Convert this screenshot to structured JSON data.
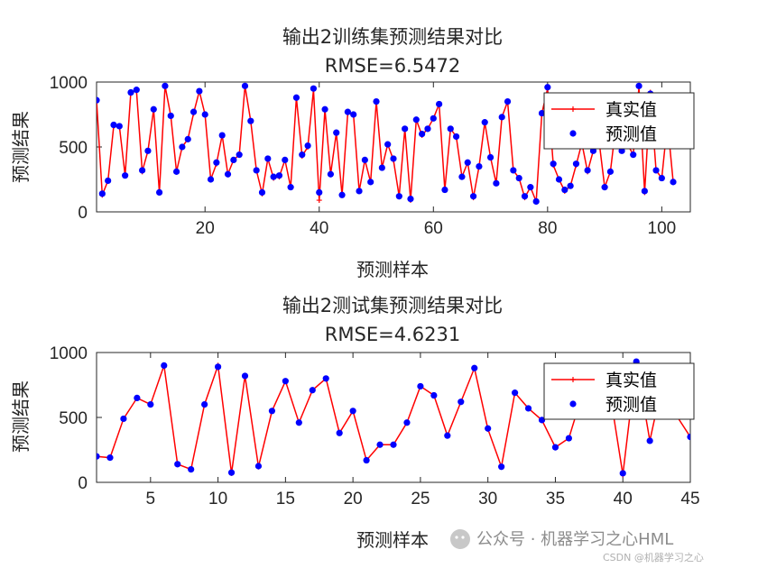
{
  "chart_data": [
    {
      "type": "line",
      "title": "输出2训练集预测结果对比",
      "subtitle": "RMSE=6.5472",
      "xlabel": "预测样本",
      "ylabel": "预测结果",
      "xlim": [
        1,
        105
      ],
      "ylim": [
        0,
        1000
      ],
      "xticks": [
        20,
        40,
        60,
        80,
        100
      ],
      "yticks": [
        0,
        500,
        1000
      ],
      "legend_position": "top-right",
      "series": [
        {
          "name": "真实值",
          "color": "#ff0000",
          "style": "line-plus",
          "values": [
            860,
            130,
            240,
            660,
            660,
            280,
            920,
            930,
            310,
            470,
            790,
            150,
            970,
            740,
            310,
            500,
            560,
            760,
            930,
            750,
            250,
            370,
            590,
            290,
            400,
            440,
            970,
            700,
            320,
            140,
            410,
            260,
            270,
            400,
            190,
            880,
            430,
            500,
            940,
            90,
            790,
            290,
            610,
            130,
            760,
            750,
            160,
            400,
            230,
            850,
            340,
            520,
            400,
            120,
            640,
            90,
            710,
            590,
            640,
            720,
            830,
            170,
            640,
            580,
            270,
            380,
            110,
            350,
            690,
            420,
            220,
            730,
            850,
            320,
            260,
            110,
            190,
            80,
            760,
            950,
            360,
            250,
            160,
            200,
            360,
            530,
            310,
            470,
            550,
            190,
            310,
            680,
            470,
            520,
            440,
            960,
            150,
            920,
            320,
            260,
            690,
            230
          ]
        },
        {
          "name": "预测值",
          "color": "#0000ff",
          "style": "dots",
          "values": [
            860,
            140,
            240,
            670,
            660,
            280,
            920,
            940,
            320,
            470,
            790,
            150,
            970,
            740,
            310,
            500,
            560,
            770,
            930,
            750,
            250,
            380,
            590,
            290,
            400,
            440,
            970,
            700,
            320,
            150,
            410,
            270,
            280,
            400,
            190,
            880,
            440,
            510,
            950,
            150,
            790,
            290,
            610,
            130,
            770,
            750,
            160,
            400,
            230,
            850,
            340,
            520,
            410,
            120,
            640,
            100,
            710,
            600,
            640,
            720,
            830,
            170,
            640,
            580,
            270,
            380,
            120,
            350,
            690,
            420,
            220,
            730,
            850,
            320,
            260,
            120,
            190,
            80,
            760,
            960,
            370,
            250,
            170,
            200,
            370,
            540,
            320,
            470,
            560,
            190,
            310,
            690,
            470,
            530,
            440,
            970,
            160,
            910,
            320,
            260,
            690,
            230
          ]
        }
      ]
    },
    {
      "type": "line",
      "title": "输出2测试集预测结果对比",
      "subtitle": "RMSE=4.6231",
      "xlabel": "预测样本",
      "ylabel": "预测结果",
      "xlim": [
        1,
        45
      ],
      "ylim": [
        0,
        1000
      ],
      "xticks": [
        5,
        10,
        15,
        20,
        25,
        30,
        35,
        40,
        45
      ],
      "yticks": [
        0,
        500,
        1000
      ],
      "legend_position": "top-right",
      "series": [
        {
          "name": "真实值",
          "color": "#ff0000",
          "style": "line-plus",
          "values": [
            200,
            190,
            490,
            650,
            600,
            900,
            140,
            100,
            600,
            900,
            70,
            820,
            120,
            550,
            780,
            460,
            710,
            800,
            380,
            550,
            170,
            290,
            290,
            460,
            740,
            670,
            360,
            620,
            880,
            410,
            120,
            690,
            570,
            480,
            270,
            340,
            680,
            510,
            720,
            60,
            930,
            320,
            800,
            510,
            350
          ]
        },
        {
          "name": "预测值",
          "color": "#0000ff",
          "style": "dots",
          "values": [
            200,
            190,
            490,
            650,
            600,
            900,
            140,
            100,
            600,
            890,
            75,
            820,
            125,
            550,
            780,
            460,
            710,
            800,
            380,
            550,
            170,
            290,
            290,
            460,
            740,
            670,
            360,
            620,
            880,
            415,
            120,
            690,
            570,
            480,
            270,
            340,
            680,
            510,
            720,
            70,
            930,
            320,
            800,
            510,
            350
          ]
        }
      ]
    }
  ],
  "watermark": {
    "main": "公众号 · 机器学习之心HML",
    "sub": "CSDN @机器学习之心"
  }
}
